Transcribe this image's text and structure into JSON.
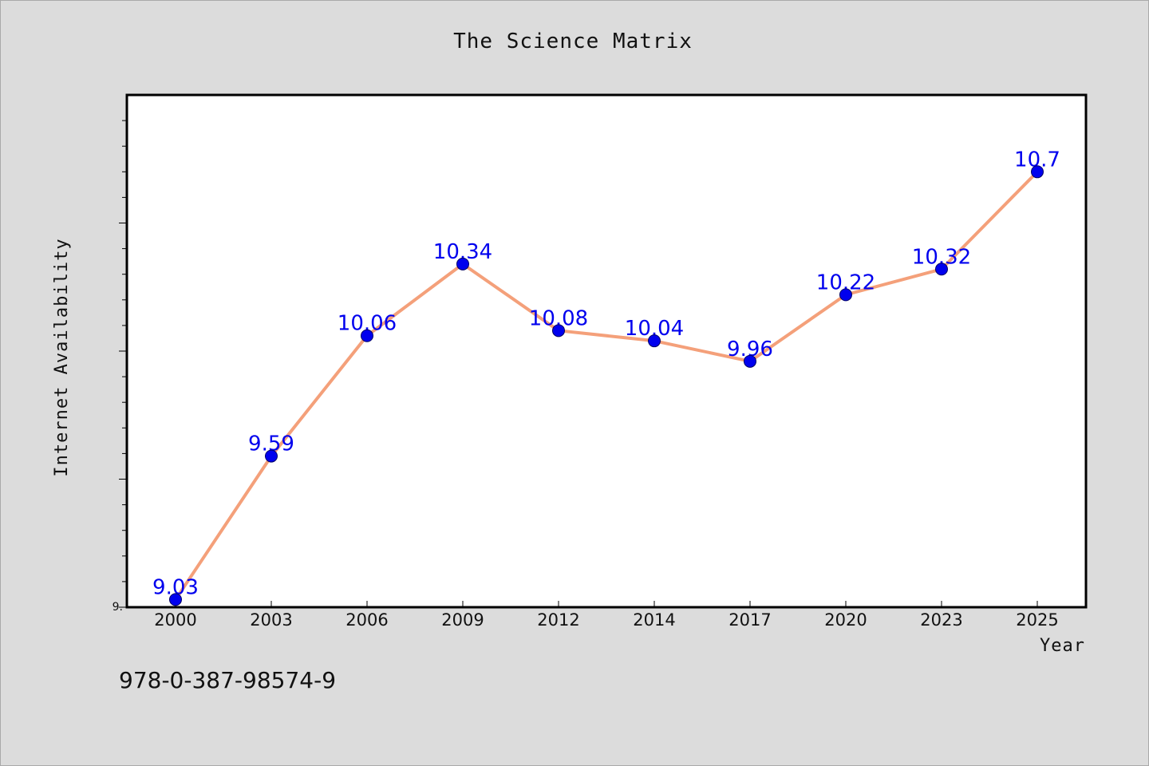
{
  "chart_data": {
    "type": "line",
    "title": "The Science Matrix",
    "xlabel": "Year",
    "ylabel": "Internet Availability",
    "categories": [
      "2000",
      "2003",
      "2006",
      "2009",
      "2012",
      "2014",
      "2017",
      "2020",
      "2023",
      "2025"
    ],
    "series": [
      {
        "values": [
          9.03,
          9.59,
          10.06,
          10.34,
          10.08,
          10.04,
          9.96,
          10.22,
          10.32,
          10.7
        ],
        "labels": [
          "9.03",
          "9.59",
          "10.06",
          "10.34",
          "10.08",
          "10.04",
          "9.96",
          "10.22",
          "10.32",
          "10.7"
        ],
        "line_color": "#F4A07A",
        "marker_color": "#0000EE",
        "label_color": "#0000EE"
      }
    ],
    "ylim": [
      9.0,
      11.0
    ],
    "y_tick_label": "9.",
    "grid": false,
    "legend": false
  },
  "footer": {
    "isbn": "978-0-387-98574-9"
  },
  "colors": {
    "background": "#DCDCDC",
    "plot_background": "#FFFFFF",
    "axis": "#000000"
  }
}
